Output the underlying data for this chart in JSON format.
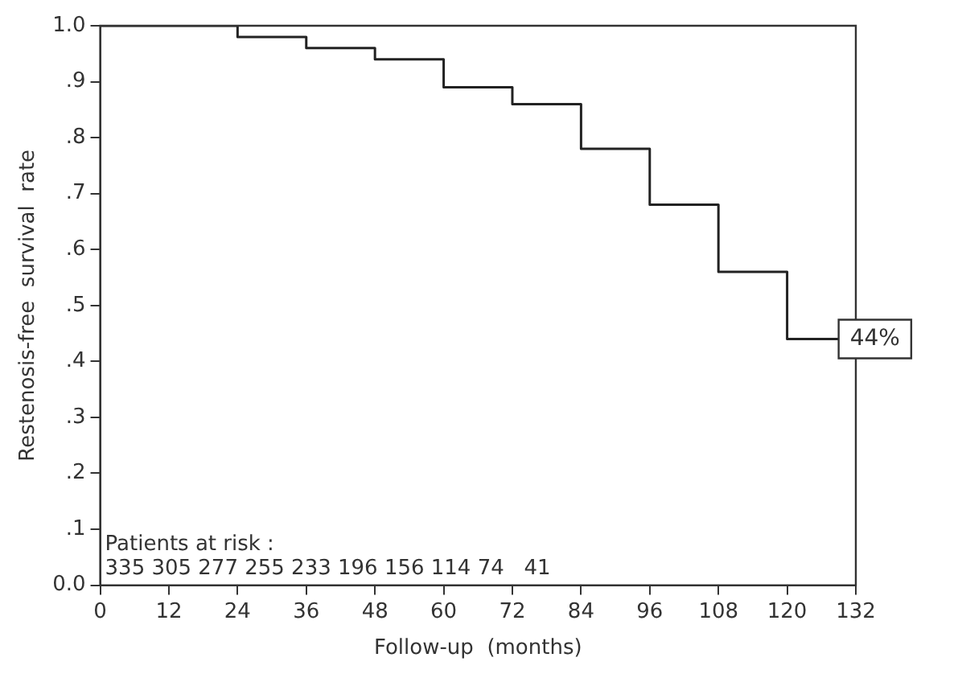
{
  "chart_data": {
    "type": "step",
    "xlabel": "Follow-up  (months)",
    "ylabel": "Restenosis-free  survival  rate",
    "x": [
      0,
      24,
      36,
      48,
      60,
      72,
      84,
      96,
      108,
      120,
      129
    ],
    "series": [
      {
        "color": "#222222",
        "values": [
          1,
          0.98,
          0.96,
          0.94,
          0.89,
          0.86,
          0.78,
          0.68,
          0.56,
          0.44,
          0.44
        ]
      }
    ],
    "xlim": [
      0,
      132
    ],
    "xticks": [
      0,
      12,
      24,
      36,
      48,
      60,
      72,
      84,
      96,
      108,
      120,
      132
    ],
    "ylim": [
      0,
      1
    ],
    "yticks": [
      {
        "value": 0,
        "label": "0.0"
      },
      {
        "value": 0.1,
        "label": ".1"
      },
      {
        "value": 0.2,
        "label": ".2"
      },
      {
        "value": 0.3,
        "label": ".3"
      },
      {
        "value": 0.4,
        "label": ".4"
      },
      {
        "value": 0.5,
        "label": ".5"
      },
      {
        "value": 0.6,
        "label": ".6"
      },
      {
        "value": 0.7,
        "label": ".7"
      },
      {
        "value": 0.8,
        "label": ".8"
      },
      {
        "value": 0.9,
        "label": ".9"
      },
      {
        "value": 1,
        "label": "1.0"
      }
    ],
    "marker": "none",
    "legend": false,
    "annotations": [
      {
        "text": "44%",
        "x": 129,
        "y": 0.44
      },
      "Patients at risk :",
      "335 305 277 255 233 196 156 114 74   41"
    ]
  }
}
